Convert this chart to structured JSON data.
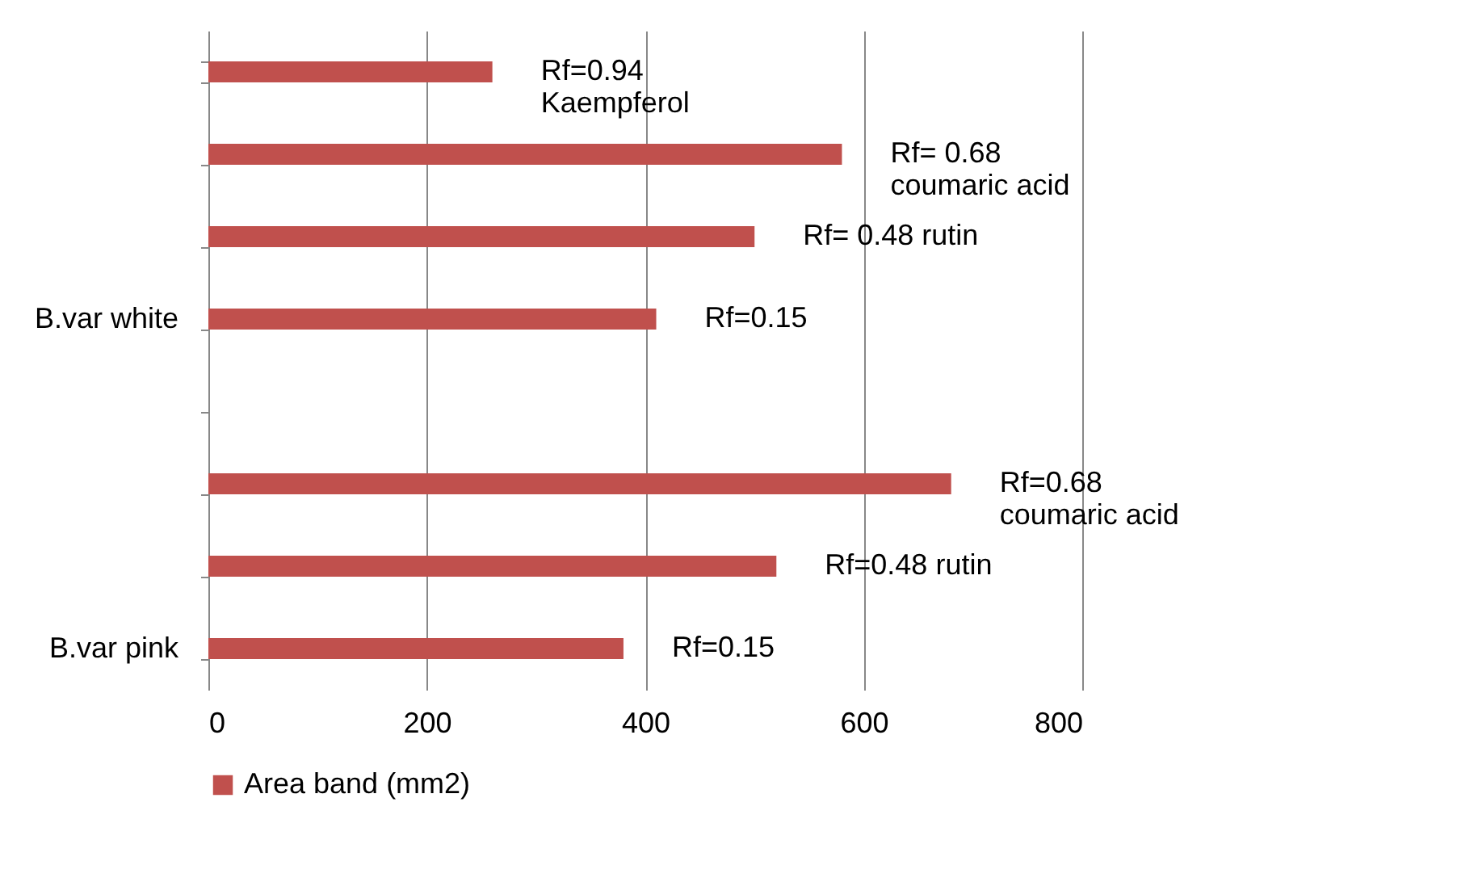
{
  "chart_data": {
    "type": "bar",
    "orientation": "horizontal",
    "categories": [
      null,
      null,
      null,
      "B.var white",
      null,
      null,
      null,
      "B.var pink"
    ],
    "series": [
      {
        "name": "Area band (mm2)",
        "color": "#c0504d",
        "values": [
          260,
          580,
          500,
          410,
          null,
          680,
          520,
          380
        ]
      }
    ],
    "annotations": [
      {
        "text": "Rf=0.94\nKaempferol",
        "x": 260
      },
      {
        "text": "Rf= 0.68\ncoumaric acid",
        "x": 580
      },
      {
        "text": "Rf= 0.48 rutin",
        "x": 500
      },
      {
        "text": "Rf=0.15",
        "x": 410
      },
      {
        "text": "Rf=0.68\ncoumaric acid",
        "x": 680
      },
      {
        "text": "Rf=0.48 rutin",
        "x": 520
      },
      {
        "text": "Rf=0.15",
        "x": 380
      }
    ],
    "xlim": [
      0,
      800
    ],
    "xticks": [
      0,
      200,
      400,
      600,
      800
    ],
    "grid": "x",
    "legend": "bottom"
  }
}
